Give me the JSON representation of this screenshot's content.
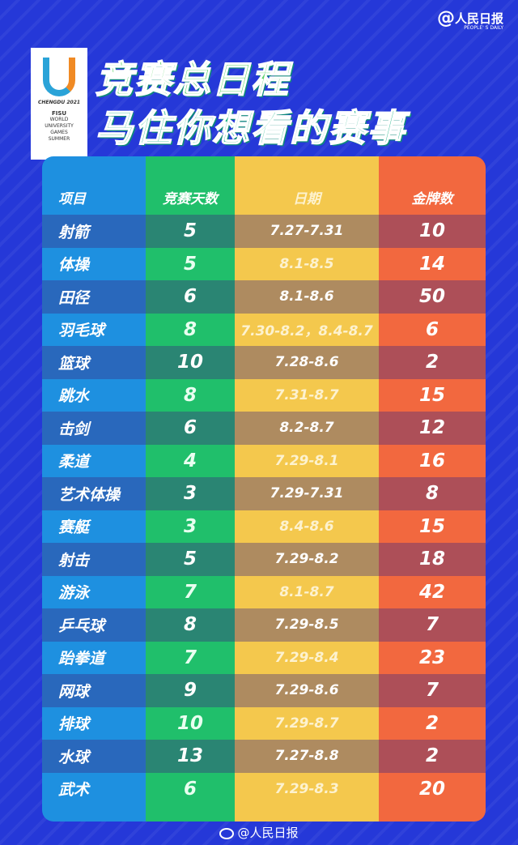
{
  "brand": {
    "at": "@",
    "name": "人民日报",
    "name_en": "PEOPLE' S DAILY"
  },
  "logo": {
    "city": "CHENGDU 2021",
    "org": "FISU",
    "lines": [
      "WORLD",
      "UNIVERSITY",
      "GAMES",
      "SUMMER"
    ]
  },
  "title": {
    "line1": "竞赛总日程",
    "line2": "马住你想看的赛事"
  },
  "colors": {
    "background": "#2538d8",
    "col_sport": "#1e90e0",
    "col_days": "#20bf6b",
    "col_dates": "#f4c84d",
    "col_medals": "#f2683f"
  },
  "table": {
    "headers": [
      "项目",
      "竞赛天数",
      "日期",
      "金牌数"
    ],
    "rows": [
      [
        "射箭",
        "5",
        "7.27-7.31",
        "10"
      ],
      [
        "体操",
        "5",
        "8.1-8.5",
        "14"
      ],
      [
        "田径",
        "6",
        "8.1-8.6",
        "50"
      ],
      [
        "羽毛球",
        "8",
        "7.30-8.2，8.4-8.7",
        "6"
      ],
      [
        "篮球",
        "10",
        "7.28-8.6",
        "2"
      ],
      [
        "跳水",
        "8",
        "7.31-8.7",
        "15"
      ],
      [
        "击剑",
        "6",
        "8.2-8.7",
        "12"
      ],
      [
        "柔道",
        "4",
        "7.29-8.1",
        "16"
      ],
      [
        "艺术体操",
        "3",
        "7.29-7.31",
        "8"
      ],
      [
        "赛艇",
        "3",
        "8.4-8.6",
        "15"
      ],
      [
        "射击",
        "5",
        "7.29-8.2",
        "18"
      ],
      [
        "游泳",
        "7",
        "8.1-8.7",
        "42"
      ],
      [
        "乒乓球",
        "8",
        "7.29-8.5",
        "7"
      ],
      [
        "跆拳道",
        "7",
        "7.29-8.4",
        "23"
      ],
      [
        "网球",
        "9",
        "7.29-8.6",
        "7"
      ],
      [
        "排球",
        "10",
        "7.29-8.7",
        "2"
      ],
      [
        "水球",
        "13",
        "7.27-8.8",
        "2"
      ],
      [
        "武术",
        "6",
        "7.29-8.3",
        "20"
      ]
    ]
  },
  "footer": {
    "icon": "weibo-icon",
    "text": "@人民日报"
  }
}
